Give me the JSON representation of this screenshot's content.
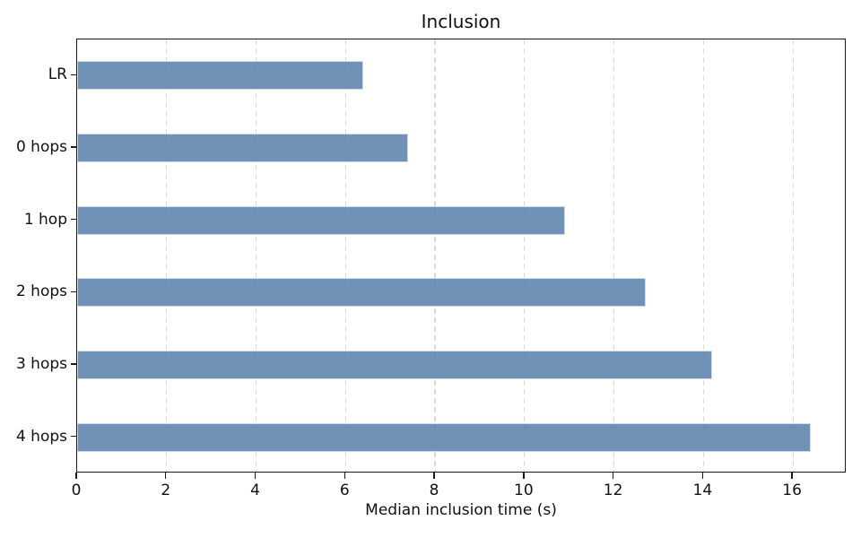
{
  "chart_data": {
    "type": "bar",
    "orientation": "horizontal",
    "title": "Inclusion",
    "xlabel": "Median inclusion time (s)",
    "ylabel": "",
    "categories": [
      "LR",
      "0 hops",
      "1 hop",
      "2 hops",
      "3 hops",
      "4 hops"
    ],
    "values": [
      6.4,
      7.4,
      10.9,
      12.7,
      14.2,
      16.4
    ],
    "xlim": [
      0,
      17.2
    ],
    "x_ticks": [
      0,
      2,
      4,
      6,
      8,
      10,
      12,
      14,
      16
    ],
    "bar_height_fraction": 0.4,
    "legend": "none",
    "grid": "vertical-dashed",
    "colors": {
      "bar_fill": "#587fab",
      "bar_edge": "#c9d6e6",
      "gridline": "#dcdcdc",
      "spine": "#1a1a1a",
      "text": "#111111",
      "background": "#ffffff"
    }
  }
}
